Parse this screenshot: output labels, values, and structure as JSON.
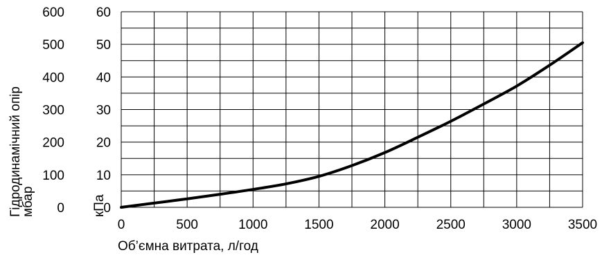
{
  "chart_data": {
    "type": "line",
    "title": "",
    "xlabel": "Об’ємна витрата, л/год",
    "ylabel_left": "Гідродинамічний опір",
    "ylabel_left_unit": "мбар",
    "ylabel_right": "кПа",
    "xlim": [
      0,
      3500
    ],
    "ylim_mbar": [
      0,
      600
    ],
    "ylim_kpa": [
      0,
      60
    ],
    "grid": true,
    "x_ticks": [
      "0",
      "500",
      "1000",
      "1500",
      "2000",
      "2500",
      "3000",
      "3500"
    ],
    "y_ticks_mbar": [
      "0",
      "100",
      "200",
      "300",
      "400",
      "500",
      "600"
    ],
    "y_ticks_kpa": [
      "0",
      "10",
      "20",
      "30",
      "40",
      "50",
      "60"
    ],
    "series": [
      {
        "x": [
          0,
          250,
          500,
          750,
          1000,
          1250,
          1500,
          1750,
          2000,
          2250,
          2500,
          2750,
          3000,
          3250,
          3500
        ],
        "y": [
          0,
          13,
          26,
          40,
          55,
          72,
          95,
          128,
          168,
          215,
          264,
          317,
          372,
          436,
          505
        ]
      }
    ],
    "line_color": "#000000"
  }
}
